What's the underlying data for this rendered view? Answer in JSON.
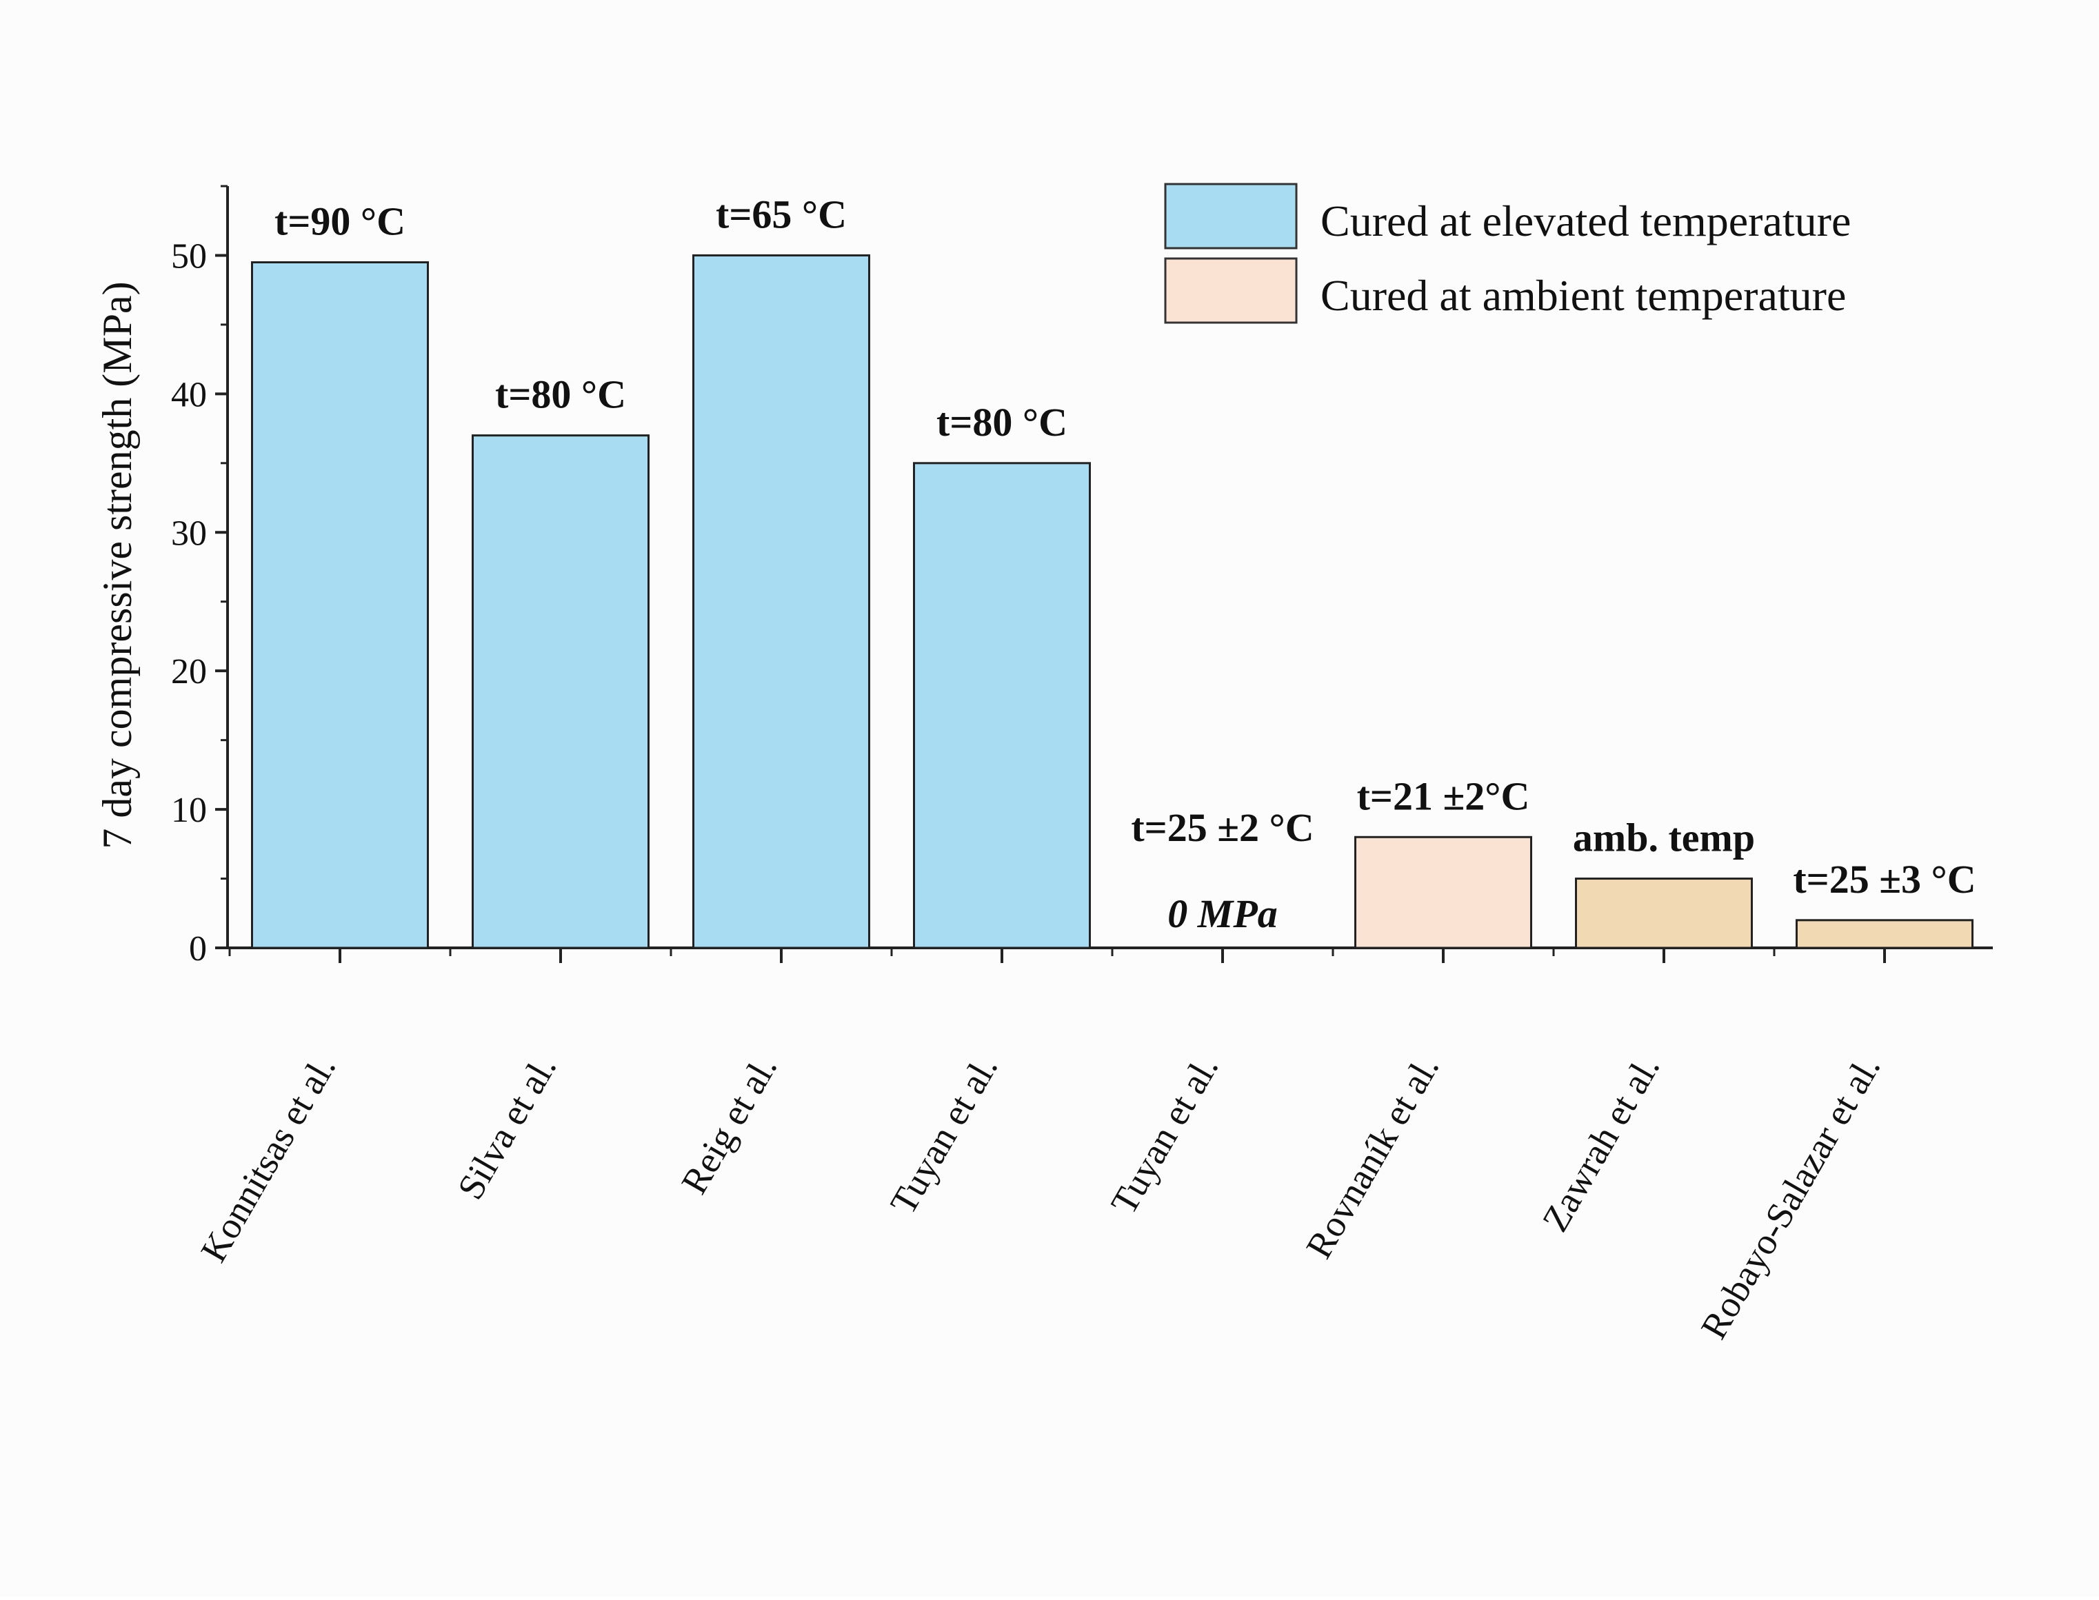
{
  "chart_data": {
    "type": "bar",
    "ylabel": "7 day compressive strength (MPa)",
    "xlabel": "",
    "ylim": [
      0,
      55
    ],
    "yticks": [
      0,
      10,
      20,
      30,
      40,
      50
    ],
    "grid": false,
    "legend_position": "top-right",
    "legend": [
      {
        "label": "Cured at elevated temperature",
        "color": "#a8dcf3"
      },
      {
        "label": "Cured at ambient temperature",
        "color": "#fbe3d3"
      }
    ],
    "categories": [
      "Konnitsas et al.",
      "Silva et al.",
      "Reig et al.",
      "Tuyan et al.",
      "Tuyan et al.",
      "Rovnaník et al.",
      "Zawrah et al.",
      "Robayo-Salazar et al."
    ],
    "values": [
      49.5,
      37,
      50,
      35,
      0,
      8,
      5,
      2
    ],
    "groups": [
      "elevated",
      "elevated",
      "elevated",
      "elevated",
      "ambient",
      "ambient",
      "ambient",
      "ambient"
    ],
    "bar_colors": [
      "#a8dcf3",
      "#a8dcf3",
      "#a8dcf3",
      "#a8dcf3",
      "#fbe3d3",
      "#fbe3d3",
      "#f1d9b4",
      "#f1d9b4"
    ],
    "bar_labels": [
      "t=90 °C",
      "t=80 °C",
      "t=65 °C",
      "t=80 °C",
      "t=25 ±2 °C",
      "t=21 ±2°C",
      "amb. temp",
      "t=25 ±3 °C"
    ],
    "annotations": [
      {
        "category_index": 4,
        "text": "0 MPa"
      }
    ]
  }
}
